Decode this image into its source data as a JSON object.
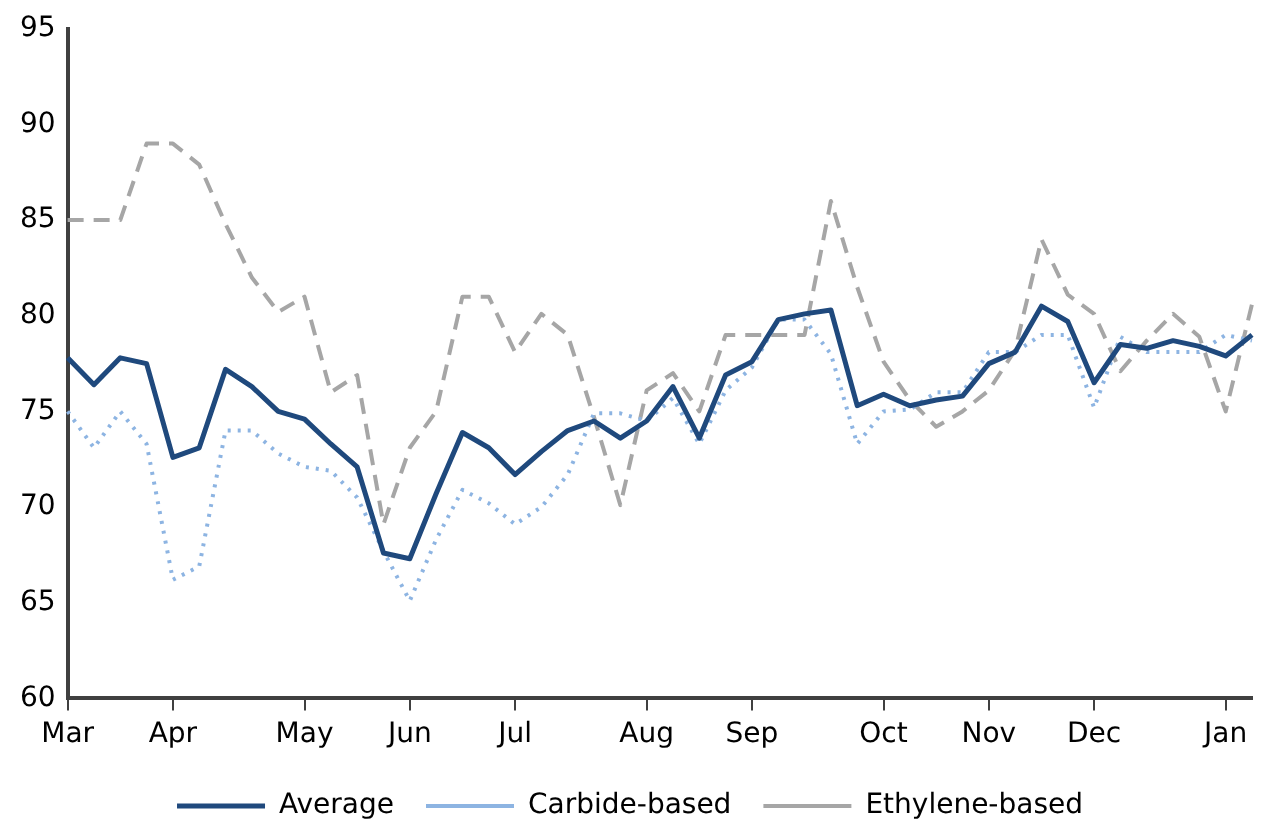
{
  "chart_data": {
    "type": "line",
    "categories": [
      "Mar",
      null,
      null,
      null,
      "Apr",
      null,
      null,
      null,
      null,
      "May",
      null,
      null,
      null,
      "Jun",
      null,
      null,
      null,
      "Jul",
      null,
      null,
      null,
      null,
      "Aug",
      null,
      null,
      null,
      "Sep",
      null,
      null,
      null,
      null,
      "Oct",
      null,
      null,
      null,
      "Nov",
      null,
      null,
      null,
      "Dec",
      null,
      null,
      null,
      null,
      "Jan",
      null
    ],
    "ylim": [
      60,
      95
    ],
    "yticks": [
      60,
      65,
      70,
      75,
      80,
      85,
      90,
      95
    ],
    "grid": false,
    "legend": "bottom",
    "marker": "none",
    "series": [
      {
        "name": "Average",
        "color": "#1f497d",
        "line_style": "solid",
        "values": [
          77.8,
          76.4,
          77.8,
          77.5,
          72.6,
          73.1,
          77.2,
          76.3,
          75.0,
          74.6,
          73.3,
          72.1,
          67.6,
          67.3,
          70.7,
          73.9,
          73.1,
          71.7,
          72.9,
          74.0,
          74.5,
          73.6,
          74.5,
          76.3,
          73.6,
          76.9,
          77.6,
          79.8,
          80.1,
          80.3,
          75.3,
          75.9,
          75.3,
          75.6,
          75.8,
          77.5,
          78.1,
          80.5,
          79.7,
          76.5,
          78.5,
          78.3,
          78.7,
          78.4,
          77.9,
          79.0
        ]
      },
      {
        "name": "Carbide-based",
        "color": "#8db4e2",
        "line_style": "dotted",
        "values": [
          75.0,
          73.1,
          75.0,
          73.3,
          66.2,
          66.9,
          74.0,
          74.0,
          72.8,
          72.1,
          71.9,
          70.5,
          67.7,
          65.1,
          68.3,
          70.9,
          70.2,
          69.1,
          70.0,
          71.7,
          74.9,
          74.9,
          74.5,
          75.7,
          73.3,
          76.1,
          77.3,
          79.8,
          79.8,
          78.0,
          73.3,
          75.0,
          75.1,
          76.0,
          76.0,
          78.1,
          78.1,
          79.0,
          79.0,
          75.2,
          78.9,
          78.1,
          78.1,
          78.1,
          79.0,
          78.7
        ]
      },
      {
        "name": "Ethylene-based",
        "color": "#a6a6a6",
        "line_style": "dashed",
        "values": [
          85,
          85,
          85,
          89.0,
          89.0,
          87.9,
          84.8,
          82.0,
          80.2,
          81.0,
          76.0,
          76.9,
          69.1,
          73.1,
          75.0,
          81.0,
          81.0,
          78.1,
          80.1,
          79.0,
          74.7,
          70.1,
          76.1,
          77.0,
          75.0,
          79.0,
          79.0,
          79.0,
          79.0,
          86.0,
          81.5,
          77.6,
          75.6,
          74.2,
          75.0,
          76.1,
          78.2,
          84.0,
          81.1,
          80.1,
          77.1,
          78.7,
          80.1,
          78.9,
          75.0,
          80.6
        ]
      }
    ]
  }
}
